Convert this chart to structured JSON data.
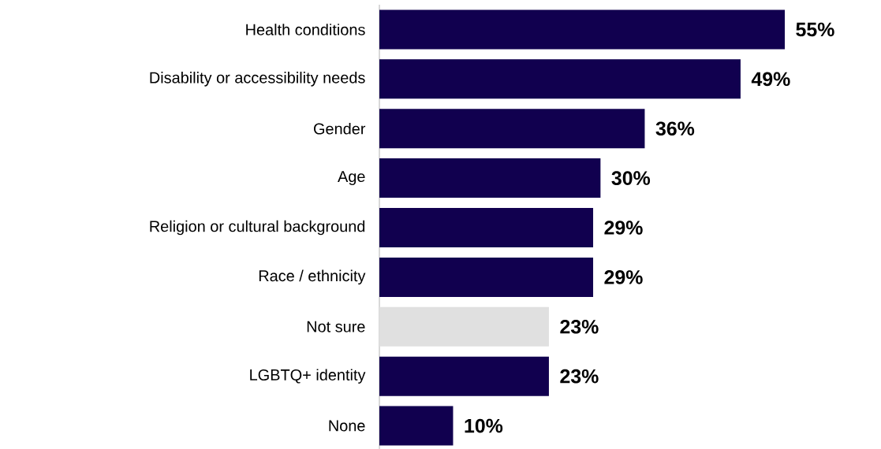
{
  "chart_data": {
    "type": "bar",
    "orientation": "horizontal",
    "categories": [
      "Health conditions",
      "Disability or accessibility needs",
      "Gender",
      "Age",
      "Religion or cultural background",
      "Race / ethnicity",
      "Not sure",
      "LGBTQ+ identity",
      "None"
    ],
    "values": [
      55,
      49,
      36,
      30,
      29,
      29,
      23,
      23,
      10
    ],
    "value_labels": [
      "55%",
      "49%",
      "36%",
      "30%",
      "29%",
      "29%",
      "23%",
      "23%",
      "10%"
    ],
    "colors": [
      "#11004f",
      "#11004f",
      "#11004f",
      "#11004f",
      "#11004f",
      "#11004f",
      "#e0e0e0",
      "#11004f",
      "#11004f"
    ]
  }
}
